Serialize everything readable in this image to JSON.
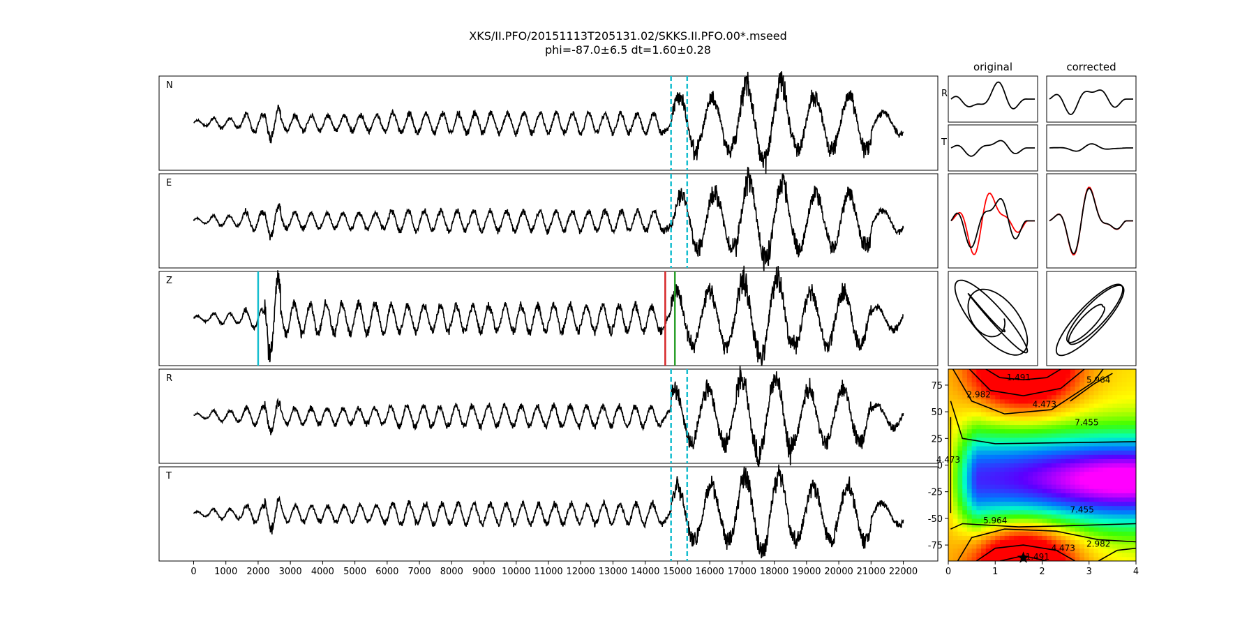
{
  "title": "XKS/II.PFO/20151113T205131.02/SKKS.II.PFO.00*.mseed",
  "subtitle": "phi=-87.0±6.5 dt=1.60±0.28",
  "colors": {
    "trace": "#000000",
    "window_marker": "#17becf",
    "pick_start": "#17becf",
    "pick_red": "#d62728",
    "pick_green": "#2ca02c",
    "rotated_original": "#ff0000"
  },
  "chart_data": [
    {
      "type": "line",
      "description_tag": "seismogram-panels",
      "x_ticks": [
        0,
        1000,
        2000,
        3000,
        4000,
        5000,
        6000,
        7000,
        8000,
        9000,
        10000,
        11000,
        12000,
        13000,
        14000,
        15000,
        16000,
        17000,
        18000,
        19000,
        20000,
        21000,
        22000
      ],
      "xlim": [
        -1070,
        23070
      ],
      "x_range": [
        0,
        22000
      ],
      "panels": [
        {
          "label": "N",
          "dashed_markers": [
            14800,
            15300
          ],
          "solid_markers": []
        },
        {
          "label": "E",
          "dashed_markers": [
            14800,
            15300
          ],
          "solid_markers": []
        },
        {
          "label": "Z",
          "dashed_markers": [],
          "solid_markers": [
            {
              "x": 2000,
              "color": "window_marker"
            },
            {
              "x": 14620,
              "color": "pick_red"
            },
            {
              "x": 14920,
              "color": "pick_green"
            }
          ]
        },
        {
          "label": "R",
          "dashed_markers": [
            14800,
            15300
          ],
          "solid_markers": []
        },
        {
          "label": "T",
          "dashed_markers": [
            14800,
            15300
          ],
          "solid_markers": []
        }
      ]
    },
    {
      "type": "line",
      "description_tag": "particle-motion-panels",
      "column_titles": [
        "original",
        "corrected"
      ],
      "row_labels": [
        "R",
        "T"
      ]
    },
    {
      "type": "heatmap",
      "description_tag": "energy-grid",
      "x_ticks": [
        0,
        1,
        2,
        3,
        4
      ],
      "y_ticks": [
        75,
        50,
        25,
        0,
        -25,
        -50,
        -75
      ],
      "xlim": [
        0,
        4
      ],
      "ylim": [
        -90,
        90
      ],
      "best_fit": {
        "dt": 1.6,
        "phi": -87.0
      },
      "contour_labels": [
        "1.491",
        "2.982",
        "4.473",
        "5.964",
        "7.455",
        "7.455",
        "5.964",
        "4.473",
        "2.982",
        "4.473",
        "1.491"
      ]
    }
  ]
}
